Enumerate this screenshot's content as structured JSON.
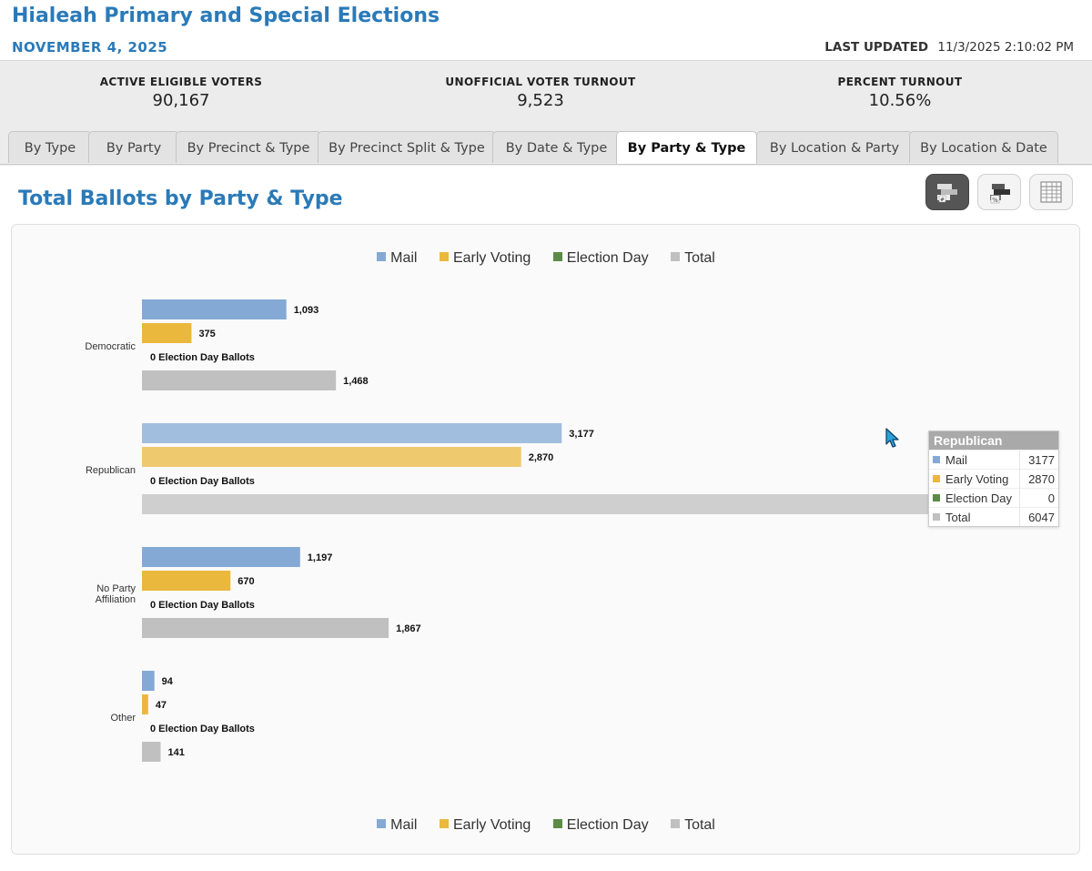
{
  "header": {
    "title": "Hialeah Primary and Special Elections",
    "date": "NOVEMBER 4, 2025",
    "last_updated_label": "LAST UPDATED",
    "last_updated_value": "11/3/2025 2:10:02 PM"
  },
  "stats": [
    {
      "label": "ACTIVE ELIGIBLE VOTERS",
      "value": "90,167"
    },
    {
      "label": "UNOFFICIAL VOTER TURNOUT",
      "value": "9,523"
    },
    {
      "label": "PERCENT TURNOUT",
      "value": "10.56%"
    }
  ],
  "tabs": [
    {
      "label": "By Type"
    },
    {
      "label": "By Party"
    },
    {
      "label": "By Precinct & Type"
    },
    {
      "label": "By Precinct Split & Type"
    },
    {
      "label": "By Date & Type"
    },
    {
      "label": "By Party & Type",
      "active": true
    },
    {
      "label": "By Location & Party"
    },
    {
      "label": "By Location & Date"
    }
  ],
  "section": {
    "title": "Total Ballots by Party & Type"
  },
  "view_buttons": [
    {
      "icon": "count-chart-icon",
      "active": true
    },
    {
      "icon": "percent-chart-icon",
      "active": false
    },
    {
      "icon": "table-view-icon",
      "active": false
    }
  ],
  "colors": {
    "mail": "#84a9d4",
    "early_voting": "#ebb83e",
    "election_day": "#5b8b47",
    "total": "#c0c0c0",
    "accent": "#2a7ab8"
  },
  "chart_data": {
    "type": "bar",
    "orientation": "horizontal",
    "categories": [
      "Democratic",
      "Republican",
      "No Party Affiliation",
      "Other"
    ],
    "series": [
      {
        "name": "Mail",
        "values": [
          1093,
          3177,
          1197,
          94
        ]
      },
      {
        "name": "Early Voting",
        "values": [
          375,
          2870,
          670,
          47
        ]
      },
      {
        "name": "Election Day",
        "values": [
          0,
          0,
          0,
          0
        ]
      },
      {
        "name": "Total",
        "values": [
          1468,
          6047,
          1867,
          141
        ]
      }
    ],
    "data_labels": [
      [
        "1,093",
        "375",
        "0 Election Day Ballots",
        "1,468"
      ],
      [
        "3,177",
        "2,870",
        "0 Election Day Ballots",
        "6,047"
      ],
      [
        "1,197",
        "670",
        "0 Election Day Ballots",
        "1,867"
      ],
      [
        "94",
        "47",
        "0 Election Day Ballots",
        "141"
      ]
    ],
    "legend": [
      "Mail",
      "Early Voting",
      "Election Day",
      "Total"
    ],
    "legend_placement": "top and bottom",
    "grid": false,
    "xlim": [
      0,
      6047
    ]
  },
  "tooltip": {
    "title": "Republican",
    "rows": [
      {
        "label": "Mail",
        "value": "3177"
      },
      {
        "label": "Early Voting",
        "value": "2870"
      },
      {
        "label": "Election Day",
        "value": "0"
      },
      {
        "label": "Total",
        "value": "6047"
      }
    ]
  }
}
